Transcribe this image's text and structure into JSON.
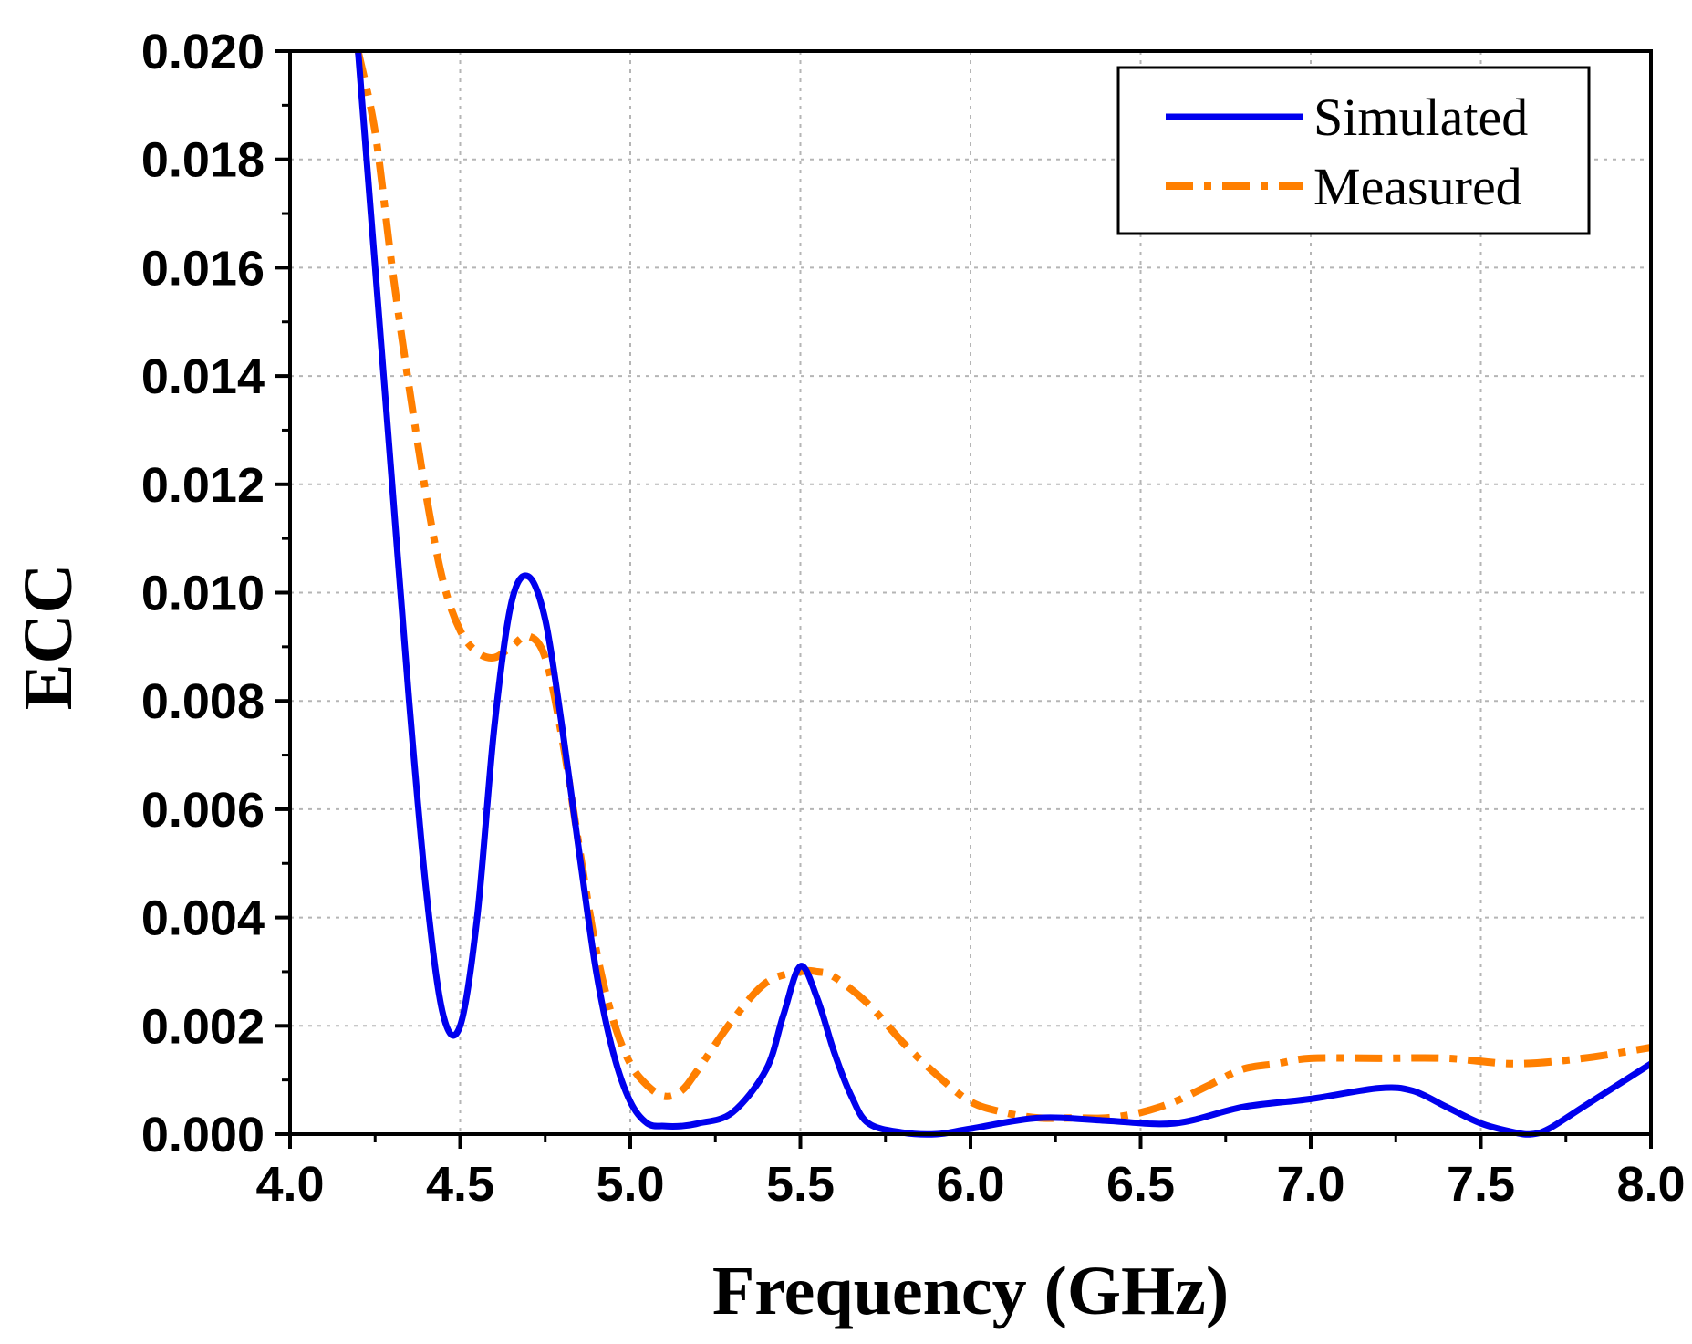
{
  "chart_data": {
    "type": "line",
    "title": "",
    "xlabel": "Frequency (GHz)",
    "ylabel": "ECC",
    "xlim": [
      4.0,
      8.0
    ],
    "ylim": [
      0.0,
      0.02
    ],
    "x_ticks": [
      4.0,
      4.5,
      5.0,
      5.5,
      6.0,
      6.5,
      7.0,
      7.5,
      8.0
    ],
    "x_tick_labels": [
      "4.0",
      "4.5",
      "5.0",
      "5.5",
      "6.0",
      "6.5",
      "7.0",
      "7.5",
      "8.0"
    ],
    "y_ticks": [
      0.0,
      0.002,
      0.004,
      0.006,
      0.008,
      0.01,
      0.012,
      0.014,
      0.016,
      0.018,
      0.02
    ],
    "y_tick_labels": [
      "0.000",
      "0.002",
      "0.004",
      "0.006",
      "0.008",
      "0.010",
      "0.012",
      "0.014",
      "0.016",
      "0.018",
      "0.020"
    ],
    "grid": true,
    "legend_position": "top-right",
    "series": [
      {
        "name": "Simulated",
        "color": "#0000ee",
        "style": "solid",
        "x": [
          4.2,
          4.25,
          4.3,
          4.35,
          4.4,
          4.45,
          4.5,
          4.55,
          4.6,
          4.65,
          4.7,
          4.75,
          4.8,
          4.85,
          4.9,
          4.95,
          5.0,
          5.05,
          5.1,
          5.15,
          5.2,
          5.3,
          5.4,
          5.45,
          5.5,
          5.55,
          5.6,
          5.65,
          5.7,
          5.8,
          5.9,
          6.0,
          6.2,
          6.4,
          6.6,
          6.8,
          7.0,
          7.2,
          7.3,
          7.4,
          7.5,
          7.6,
          7.65,
          7.7,
          7.8,
          7.9,
          8.0
        ],
        "y": [
          0.02,
          0.016,
          0.012,
          0.008,
          0.0045,
          0.0022,
          0.002,
          0.004,
          0.0075,
          0.0098,
          0.0103,
          0.0095,
          0.0075,
          0.0052,
          0.003,
          0.0015,
          0.0006,
          0.0002,
          0.00015,
          0.00015,
          0.0002,
          0.0004,
          0.0012,
          0.0022,
          0.0031,
          0.0025,
          0.0015,
          0.0007,
          0.0002,
          3e-05,
          0.0,
          0.0001,
          0.0003,
          0.00025,
          0.0002,
          0.0005,
          0.00065,
          0.00085,
          0.0008,
          0.0005,
          0.0002,
          3e-05,
          0.0,
          0.0001,
          0.0005,
          0.0009,
          0.0013
        ]
      },
      {
        "name": "Measured",
        "color": "#ff7f00",
        "style": "dashdot",
        "x": [
          4.2,
          4.25,
          4.3,
          4.35,
          4.4,
          4.45,
          4.5,
          4.55,
          4.6,
          4.65,
          4.7,
          4.75,
          4.8,
          4.85,
          4.9,
          4.95,
          5.0,
          5.05,
          5.1,
          5.15,
          5.2,
          5.3,
          5.4,
          5.5,
          5.55,
          5.6,
          5.7,
          5.8,
          5.9,
          6.0,
          6.1,
          6.2,
          6.3,
          6.4,
          6.5,
          6.6,
          6.7,
          6.8,
          6.9,
          7.0,
          7.2,
          7.4,
          7.6,
          7.8,
          8.0
        ],
        "y": [
          0.02,
          0.0185,
          0.016,
          0.0138,
          0.0118,
          0.0102,
          0.0093,
          0.0089,
          0.0088,
          0.009,
          0.0092,
          0.0088,
          0.0073,
          0.0053,
          0.0034,
          0.0021,
          0.0013,
          0.0009,
          0.0007,
          0.0008,
          0.0012,
          0.0021,
          0.0028,
          0.003,
          0.003,
          0.0029,
          0.0024,
          0.0017,
          0.0011,
          0.0006,
          0.0004,
          0.0003,
          0.0003,
          0.0003,
          0.0004,
          0.0006,
          0.0009,
          0.0012,
          0.0013,
          0.0014,
          0.0014,
          0.0014,
          0.0013,
          0.0014,
          0.0016
        ]
      }
    ]
  }
}
